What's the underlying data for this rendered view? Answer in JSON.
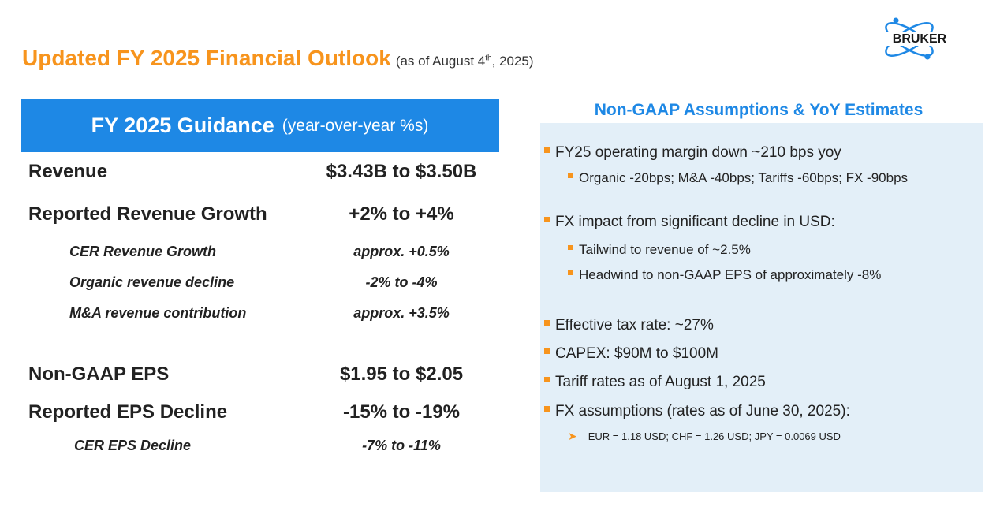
{
  "header": {
    "title": "Updated FY 2025 Financial Outlook",
    "subtitle_prefix": "(as of August 4",
    "subtitle_sup": "th",
    "subtitle_suffix": ", 2025)"
  },
  "logo": {
    "text": "BRUKER"
  },
  "guidance": {
    "heading": "FY 2025 Guidance",
    "heading_sub": "(year-over-year %s)",
    "rows": [
      {
        "label": "Revenue",
        "value": "$3.43B to $3.50B"
      },
      {
        "label": "Reported Revenue Growth",
        "value": "+2% to +4%"
      },
      {
        "label": "CER Revenue Growth",
        "value": "approx. +0.5%"
      },
      {
        "label": "Organic revenue decline",
        "value": "-2% to -4%"
      },
      {
        "label": "M&A revenue contribution",
        "value": "approx. +3.5%"
      },
      {
        "label": "Non-GAAP EPS",
        "value": "$1.95 to $2.05"
      },
      {
        "label": "Reported EPS Decline",
        "value": "-15% to -19%"
      },
      {
        "label": "CER EPS Decline",
        "value": "-7% to -11%"
      }
    ]
  },
  "assumptions": {
    "title": "Non-GAAP Assumptions & YoY Estimates",
    "items": [
      "FY25 operating margin down ~210 bps yoy",
      "Organic -20bps; M&A -40bps; Tariffs -60bps; FX -90bps",
      "FX impact from significant decline in USD:",
      "Tailwind to revenue of ~2.5%",
      "Headwind to non-GAAP EPS of approximately -8%",
      "Effective tax rate: ~27%",
      "CAPEX: $90M to $100M",
      "Tariff rates as of August 1, 2025",
      "FX assumptions (rates as of June 30, 2025):",
      "EUR = 1.18 USD; CHF = 1.26 USD; JPY = 0.0069 USD"
    ]
  },
  "colors": {
    "accent_orange": "#f7941d",
    "accent_blue": "#1e88e5",
    "panel_bg": "#e3eff8"
  }
}
